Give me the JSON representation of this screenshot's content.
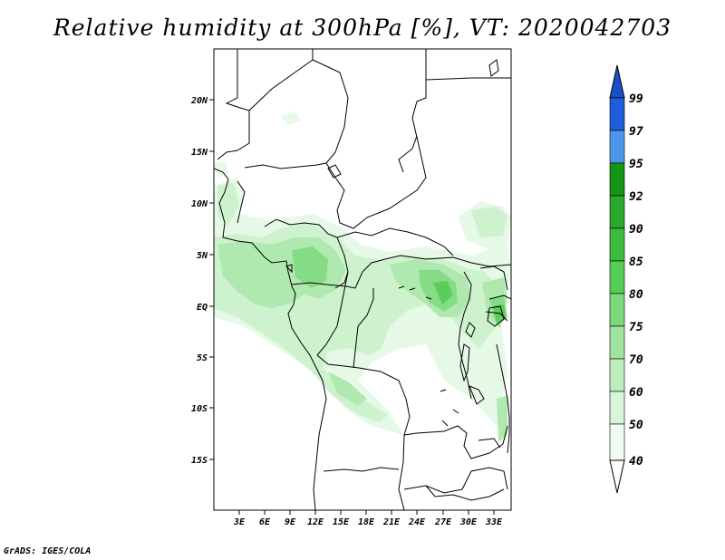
{
  "title": "Relative humidity at 300hPa [%], VT: 2020042703",
  "credit": "GrADS: IGES/COLA",
  "map": {
    "lat_labels": [
      "20N",
      "15N",
      "10N",
      "5N",
      "EQ",
      "5S",
      "10S",
      "15S"
    ],
    "lon_labels": [
      "3E",
      "6E",
      "9E",
      "12E",
      "15E",
      "18E",
      "21E",
      "24E",
      "27E",
      "30E",
      "33E"
    ],
    "variable": "Relative humidity",
    "level": "300hPa",
    "units": "%"
  },
  "colorbar": {
    "levels": [
      "99",
      "97",
      "95",
      "92",
      "90",
      "85",
      "80",
      "75",
      "70",
      "60",
      "50",
      "40"
    ],
    "colors": [
      "#1e5ed8",
      "#2f7ee0",
      "#4a97ea",
      "#149614",
      "#2ba82b",
      "#3cbc3c",
      "#56cd56",
      "#7ada7a",
      "#9ee49e",
      "#bdeebd",
      "#d9f5d9",
      "#f0fcf0"
    ],
    "top_arrow_color": "#1a4fc8"
  },
  "colors": {
    "coast": "#000000",
    "background": "#ffffff"
  }
}
